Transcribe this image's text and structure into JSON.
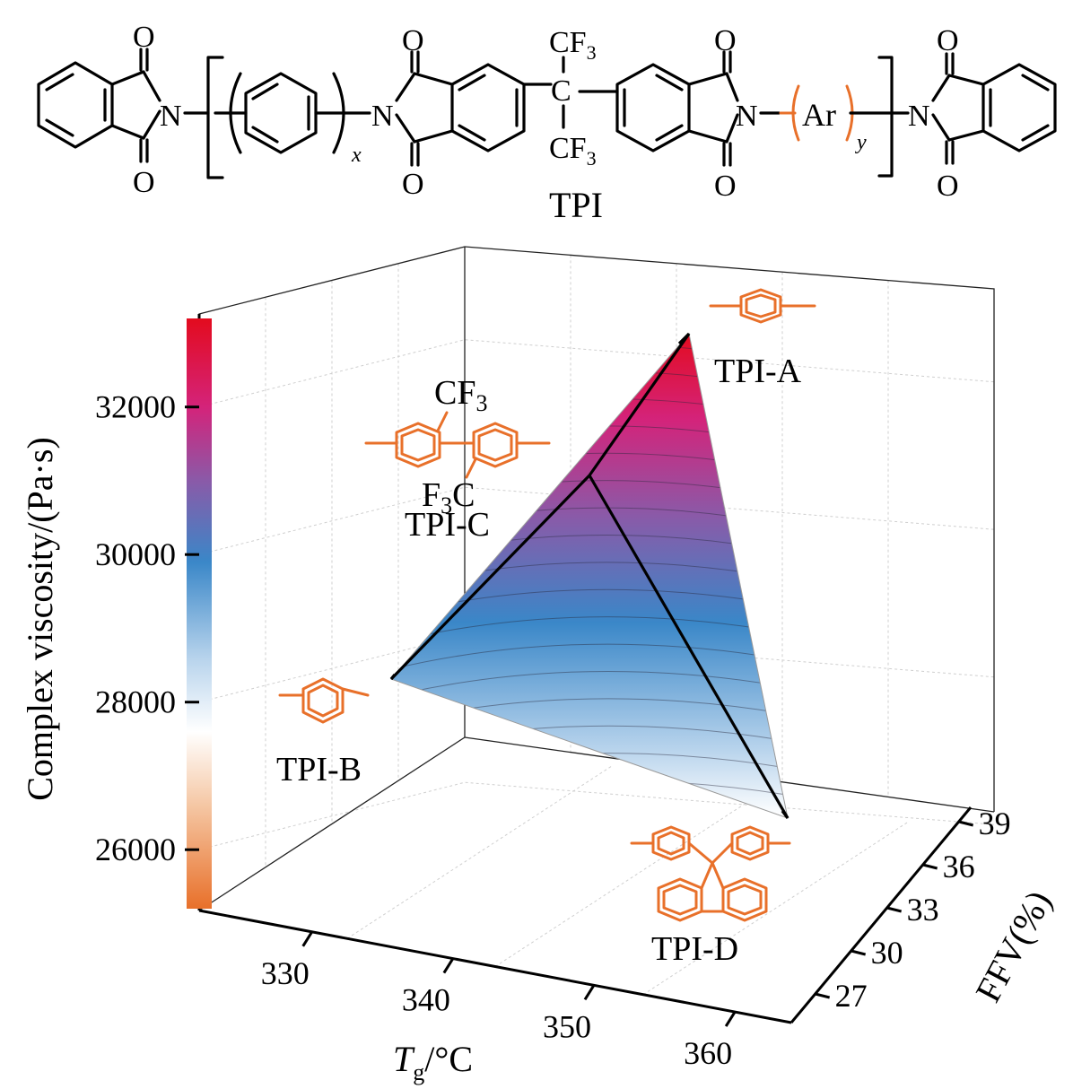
{
  "structure": {
    "caption": "TPI",
    "atoms": {
      "o": "O",
      "n": "N",
      "c": "C",
      "cf": "CF",
      "three": "3",
      "ar": "Ar",
      "x": "x",
      "y": "y"
    }
  },
  "chart_data": {
    "type": "3d-surface",
    "x_axis": {
      "label_main": "T",
      "label_sub": "g",
      "label_tail": "/°C",
      "ticks": [
        "330",
        "340",
        "350",
        "360"
      ],
      "range": [
        322,
        364
      ]
    },
    "y_axis": {
      "label": "FFV(%)",
      "ticks": [
        "27",
        "30",
        "33",
        "36",
        "39"
      ],
      "range": [
        25,
        40
      ]
    },
    "z_axis": {
      "label": "Complex viscosity/(Pa·s)",
      "ticks": [
        "26000",
        "28000",
        "30000",
        "32000"
      ],
      "range": [
        25200,
        33200
      ]
    },
    "points": [
      {
        "name": "TPI-A",
        "tg": 343,
        "ffv": 38.5,
        "viscosity": 32700
      },
      {
        "name": "TPI-B",
        "tg": 338,
        "ffv": 30.0,
        "viscosity": 28400
      },
      {
        "name": "TPI-C",
        "tg": 345,
        "ffv": 32.5,
        "viscosity": 31600
      },
      {
        "name": "TPI-D",
        "tg": 358,
        "ffv": 36.0,
        "viscosity": 27900
      }
    ],
    "colorbar": {
      "stops": [
        {
          "value": 25200,
          "color": "#e8702a"
        },
        {
          "value": 26600,
          "color": "#f5c7a4"
        },
        {
          "value": 27600,
          "color": "#ffffff"
        },
        {
          "value": 28600,
          "color": "#b7d3ec"
        },
        {
          "value": 29900,
          "color": "#3a87c8"
        },
        {
          "value": 31000,
          "color": "#8a5aa8"
        },
        {
          "value": 32000,
          "color": "#d4237a"
        },
        {
          "value": 33200,
          "color": "#e30b1e"
        }
      ]
    },
    "grid": true
  },
  "colors": {
    "accent": "#e8702a",
    "ink": "#000000"
  },
  "icons": [
    "p-phenylene-icon",
    "m-phenylene-icon",
    "bis-cf3-biphenyl-icon",
    "fluorene-bisphenyl-icon"
  ]
}
